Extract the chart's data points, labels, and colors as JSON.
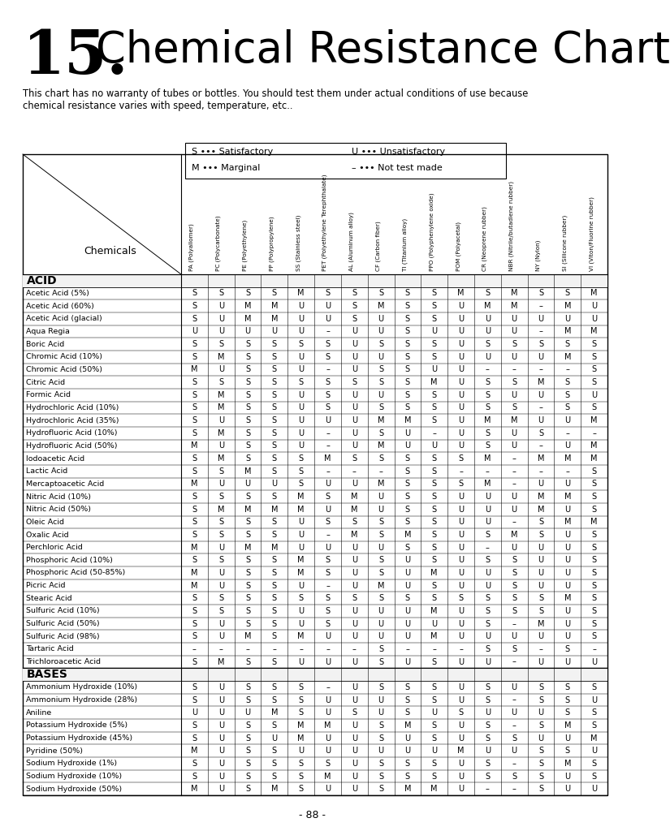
{
  "title_number": "15.",
  "title_text": "Chemical Resistance Chart",
  "subtitle": "This chart has no warranty of tubes or bottles. You should test them under actual conditions of use because\nchemical resistance varies with speed, temperature, etc..",
  "legend_items": [
    "S ••• Satisfactory",
    "U ••• Unsatisfactory",
    "M ••• Marginal",
    "– ••• Not test made"
  ],
  "columns": [
    "PA (Polyallomer)",
    "PC (Polycarbonate)",
    "PE (Polyethylene)",
    "PP (Polypropylene)",
    "SS (Stainless steel)",
    "PET (Polyethylene Terephthalate)",
    "AL (Aluminum alloy)",
    "CF (Carbon fiber)",
    "TI (Titanium alloy)",
    "PPO (Polyphenylene oxide)",
    "POM (Polyacetal)",
    "CR (Neoprene rubber)",
    "NBR (Nitrile/butadiene rubber)",
    "NY (Nylon)",
    "SI (Silicone rubber)",
    "VI (Viton/Fluorine rubber)"
  ],
  "sections": [
    {
      "name": "ACID",
      "rows": [
        [
          "Acetic Acid (5%)",
          "S",
          "S",
          "S",
          "S",
          "M",
          "S",
          "S",
          "S",
          "S",
          "S",
          "M",
          "S",
          "M",
          "S",
          "S",
          "M"
        ],
        [
          "Acetic Acid (60%)",
          "S",
          "U",
          "M",
          "M",
          "U",
          "U",
          "S",
          "M",
          "S",
          "S",
          "U",
          "M",
          "M",
          "–",
          "M",
          "U"
        ],
        [
          "Acetic Acid (glacial)",
          "S",
          "U",
          "M",
          "M",
          "U",
          "U",
          "S",
          "U",
          "S",
          "S",
          "U",
          "U",
          "U",
          "U",
          "U",
          "U"
        ],
        [
          "Aqua Regia",
          "U",
          "U",
          "U",
          "U",
          "U",
          "–",
          "U",
          "U",
          "S",
          "U",
          "U",
          "U",
          "U",
          "–",
          "M",
          "M"
        ],
        [
          "Boric Acid",
          "S",
          "S",
          "S",
          "S",
          "S",
          "S",
          "U",
          "S",
          "S",
          "S",
          "U",
          "S",
          "S",
          "S",
          "S",
          "S"
        ],
        [
          "Chromic Acid (10%)",
          "S",
          "M",
          "S",
          "S",
          "U",
          "S",
          "U",
          "U",
          "S",
          "S",
          "U",
          "U",
          "U",
          "U",
          "M",
          "S"
        ],
        [
          "Chromic Acid (50%)",
          "M",
          "U",
          "S",
          "S",
          "U",
          "–",
          "U",
          "S",
          "S",
          "U",
          "U",
          "–",
          "–",
          "–",
          "–",
          "S"
        ],
        [
          "Citric Acid",
          "S",
          "S",
          "S",
          "S",
          "S",
          "S",
          "S",
          "S",
          "S",
          "M",
          "U",
          "S",
          "S",
          "M",
          "S",
          "S"
        ],
        [
          "Formic Acid",
          "S",
          "M",
          "S",
          "S",
          "U",
          "S",
          "U",
          "U",
          "S",
          "S",
          "U",
          "S",
          "U",
          "U",
          "S",
          "U"
        ],
        [
          "Hydrochloric Acid (10%)",
          "S",
          "M",
          "S",
          "S",
          "U",
          "S",
          "U",
          "S",
          "S",
          "S",
          "U",
          "S",
          "S",
          "–",
          "S",
          "S"
        ],
        [
          "Hydrochloric Acid (35%)",
          "S",
          "U",
          "S",
          "S",
          "U",
          "U",
          "U",
          "M",
          "M",
          "S",
          "U",
          "M",
          "M",
          "U",
          "U",
          "M"
        ],
        [
          "Hydrofluoric Acid (10%)",
          "S",
          "M",
          "S",
          "S",
          "U",
          "–",
          "U",
          "S",
          "U",
          "–",
          "U",
          "S",
          "U",
          "S",
          "–",
          "–"
        ],
        [
          "Hydrofluoric Acid (50%)",
          "M",
          "U",
          "S",
          "S",
          "U",
          "–",
          "U",
          "M",
          "U",
          "U",
          "U",
          "S",
          "U",
          "–",
          "U",
          "M"
        ],
        [
          "Iodoacetic Acid",
          "S",
          "M",
          "S",
          "S",
          "S",
          "M",
          "S",
          "S",
          "S",
          "S",
          "S",
          "M",
          "–",
          "M",
          "M",
          "M"
        ],
        [
          "Lactic Acid",
          "S",
          "S",
          "M",
          "S",
          "S",
          "–",
          "–",
          "–",
          "S",
          "S",
          "–",
          "–",
          "–",
          "–",
          "–",
          "S"
        ],
        [
          "Mercaptoacetic Acid",
          "M",
          "U",
          "U",
          "U",
          "S",
          "U",
          "U",
          "M",
          "S",
          "S",
          "S",
          "M",
          "–",
          "U",
          "U",
          "S"
        ],
        [
          "Nitric Acid (10%)",
          "S",
          "S",
          "S",
          "S",
          "M",
          "S",
          "M",
          "U",
          "S",
          "S",
          "U",
          "U",
          "U",
          "M",
          "M",
          "S"
        ],
        [
          "Nitric Acid (50%)",
          "S",
          "M",
          "M",
          "M",
          "M",
          "U",
          "M",
          "U",
          "S",
          "S",
          "U",
          "U",
          "U",
          "M",
          "U",
          "S"
        ],
        [
          "Oleic Acid",
          "S",
          "S",
          "S",
          "S",
          "U",
          "S",
          "S",
          "S",
          "S",
          "S",
          "U",
          "U",
          "–",
          "S",
          "M",
          "M"
        ],
        [
          "Oxalic Acid",
          "S",
          "S",
          "S",
          "S",
          "U",
          "–",
          "M",
          "S",
          "M",
          "S",
          "U",
          "S",
          "M",
          "S",
          "U",
          "S"
        ],
        [
          "Perchloric Acid",
          "M",
          "U",
          "M",
          "M",
          "U",
          "U",
          "U",
          "U",
          "S",
          "S",
          "U",
          "–",
          "U",
          "U",
          "U",
          "S"
        ],
        [
          "Phosphoric Acid (10%)",
          "S",
          "S",
          "S",
          "S",
          "M",
          "S",
          "U",
          "S",
          "U",
          "S",
          "U",
          "S",
          "S",
          "U",
          "U",
          "S"
        ],
        [
          "Phosphoric Acid (50-85%)",
          "M",
          "U",
          "S",
          "S",
          "M",
          "S",
          "U",
          "S",
          "U",
          "M",
          "U",
          "U",
          "S",
          "U",
          "U",
          "S"
        ],
        [
          "Picric Acid",
          "M",
          "U",
          "S",
          "S",
          "U",
          "–",
          "U",
          "M",
          "U",
          "S",
          "U",
          "U",
          "S",
          "U",
          "U",
          "S"
        ],
        [
          "Stearic Acid",
          "S",
          "S",
          "S",
          "S",
          "S",
          "S",
          "S",
          "S",
          "S",
          "S",
          "S",
          "S",
          "S",
          "S",
          "M",
          "S"
        ],
        [
          "Sulfuric Acid (10%)",
          "S",
          "S",
          "S",
          "S",
          "U",
          "S",
          "U",
          "U",
          "U",
          "M",
          "U",
          "S",
          "S",
          "S",
          "U",
          "S"
        ],
        [
          "Sulfuric Acid (50%)",
          "S",
          "U",
          "S",
          "S",
          "U",
          "S",
          "U",
          "U",
          "U",
          "U",
          "U",
          "S",
          "–",
          "M",
          "U",
          "S"
        ],
        [
          "Sulfuric Acid (98%)",
          "S",
          "U",
          "M",
          "S",
          "M",
          "U",
          "U",
          "U",
          "U",
          "M",
          "U",
          "U",
          "U",
          "U",
          "U",
          "S"
        ],
        [
          "Tartaric Acid",
          "–",
          "–",
          "–",
          "–",
          "–",
          "–",
          "–",
          "S",
          "–",
          "–",
          "–",
          "S",
          "S",
          "–",
          "S",
          "–"
        ],
        [
          "Trichloroacetic Acid",
          "S",
          "M",
          "S",
          "S",
          "U",
          "U",
          "U",
          "S",
          "U",
          "S",
          "U",
          "U",
          "–",
          "U",
          "U",
          "U"
        ]
      ]
    },
    {
      "name": "BASES",
      "rows": [
        [
          "Ammonium Hydroxide (10%)",
          "S",
          "U",
          "S",
          "S",
          "S",
          "–",
          "U",
          "S",
          "S",
          "S",
          "U",
          "S",
          "U",
          "S",
          "S",
          "S"
        ],
        [
          "Ammonium Hydroxide (28%)",
          "S",
          "U",
          "S",
          "S",
          "S",
          "U",
          "U",
          "U",
          "S",
          "S",
          "U",
          "S",
          "–",
          "S",
          "S",
          "U"
        ],
        [
          "Aniline",
          "U",
          "U",
          "U",
          "M",
          "S",
          "U",
          "S",
          "U",
          "S",
          "U",
          "S",
          "U",
          "U",
          "U",
          "S",
          "S"
        ],
        [
          "Potassium Hydroxide (5%)",
          "S",
          "U",
          "S",
          "S",
          "M",
          "M",
          "U",
          "S",
          "M",
          "S",
          "U",
          "S",
          "–",
          "S",
          "M",
          "S"
        ],
        [
          "Potassium Hydroxide (45%)",
          "S",
          "U",
          "S",
          "U",
          "M",
          "U",
          "U",
          "S",
          "U",
          "S",
          "U",
          "S",
          "S",
          "U",
          "U",
          "M"
        ],
        [
          "Pyridine (50%)",
          "M",
          "U",
          "S",
          "S",
          "U",
          "U",
          "U",
          "U",
          "U",
          "U",
          "M",
          "U",
          "U",
          "S",
          "S",
          "U"
        ],
        [
          "Sodium Hydroxide (1%)",
          "S",
          "U",
          "S",
          "S",
          "S",
          "S",
          "U",
          "S",
          "S",
          "S",
          "U",
          "S",
          "–",
          "S",
          "M",
          "S"
        ],
        [
          "Sodium Hydroxide (10%)",
          "S",
          "U",
          "S",
          "S",
          "S",
          "M",
          "U",
          "S",
          "S",
          "S",
          "U",
          "S",
          "S",
          "S",
          "U",
          "S"
        ],
        [
          "Sodium Hydroxide (50%)",
          "M",
          "U",
          "S",
          "M",
          "S",
          "U",
          "U",
          "S",
          "M",
          "M",
          "U",
          "–",
          "–",
          "S",
          "U",
          "U"
        ]
      ]
    }
  ],
  "page_number": "- 88 -"
}
